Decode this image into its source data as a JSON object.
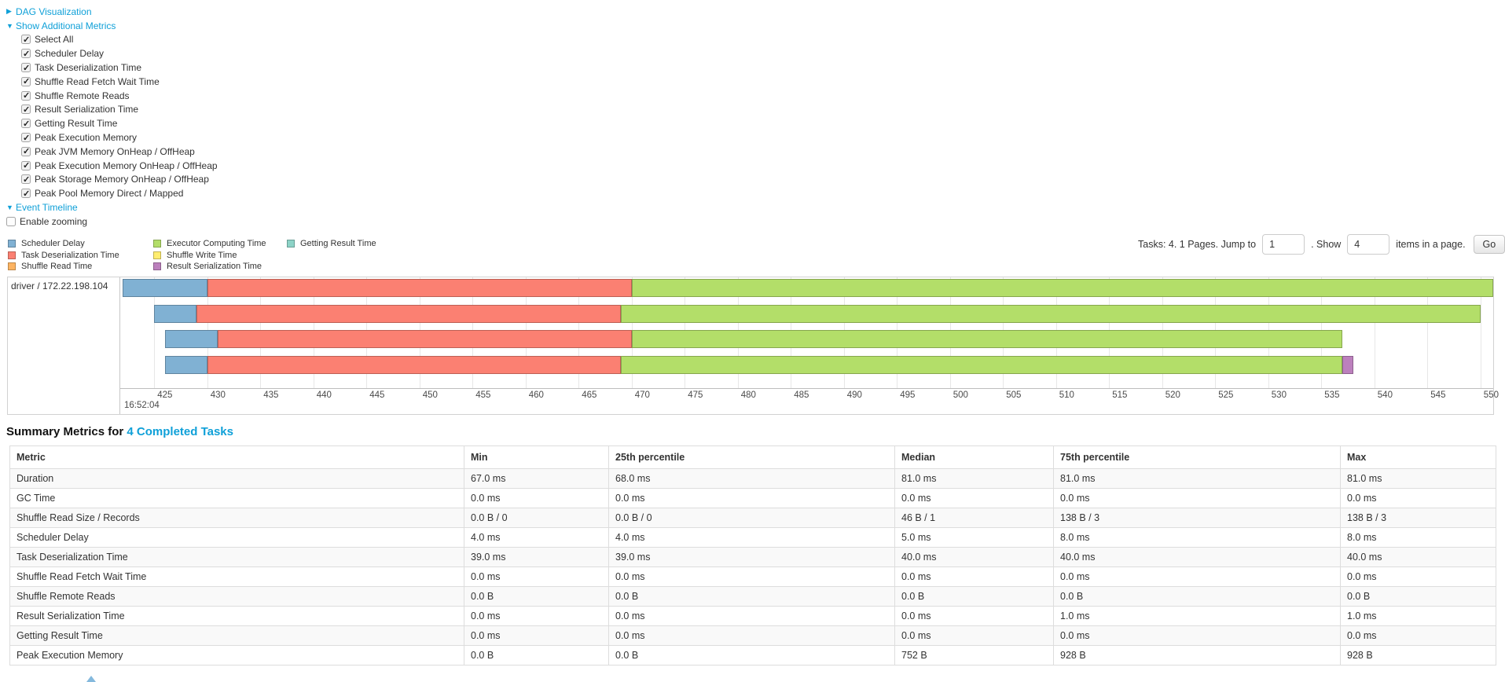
{
  "colors": {
    "link": "#0fa0d8"
  },
  "controls": {
    "dag_label": "DAG Visualization",
    "metrics_label": "Show Additional Metrics",
    "timeline_label": "Event Timeline",
    "enable_zooming_label": "Enable zooming",
    "metric_checkboxes": [
      "Select All",
      "Scheduler Delay",
      "Task Deserialization Time",
      "Shuffle Read Fetch Wait Time",
      "Shuffle Remote Reads",
      "Result Serialization Time",
      "Getting Result Time",
      "Peak Execution Memory",
      "Peak JVM Memory OnHeap / OffHeap",
      "Peak Execution Memory OnHeap / OffHeap",
      "Peak Storage Memory OnHeap / OffHeap",
      "Peak Pool Memory Direct / Mapped"
    ]
  },
  "legend": {
    "columns": [
      [
        {
          "label": "Scheduler Delay",
          "color": "#80B1D3"
        },
        {
          "label": "Task Deserialization Time",
          "color": "#FB8072"
        },
        {
          "label": "Shuffle Read Time",
          "color": "#FDB462"
        }
      ],
      [
        {
          "label": "Executor Computing Time",
          "color": "#B3DE69"
        },
        {
          "label": "Shuffle Write Time",
          "color": "#FFED6F"
        },
        {
          "label": "Result Serialization Time",
          "color": "#BC80BD"
        }
      ],
      [
        {
          "label": "Getting Result Time",
          "color": "#8DD3C7"
        }
      ]
    ]
  },
  "pagination": {
    "tasks_text": "Tasks: 4. 1 Pages. Jump to",
    "jump_value": "1",
    "mid_text": ". Show",
    "show_value": "4",
    "suffix_text": "items in a page.",
    "go_label": "Go"
  },
  "chart_data": {
    "type": "timeline",
    "title": "Event Timeline",
    "group_label": "driver / 172.22.198.104",
    "start_time_label": "16:52:04",
    "x_unit": "ms within 16:52:04",
    "x_range": [
      421.8,
      551.2
    ],
    "x_ticks": [
      425,
      430,
      435,
      440,
      445,
      450,
      455,
      460,
      465,
      470,
      475,
      480,
      485,
      490,
      495,
      500,
      505,
      510,
      515,
      520,
      525,
      530,
      535,
      540,
      545,
      550
    ],
    "colors": {
      "scheduler_delay": "#80B1D3",
      "task_deserialization": "#FB8072",
      "shuffle_read": "#FDB462",
      "executor_computing": "#B3DE69",
      "shuffle_write": "#FFED6F",
      "result_serialization": "#BC80BD",
      "getting_result": "#8DD3C7"
    },
    "tasks": [
      {
        "segments": [
          {
            "metric": "scheduler_delay",
            "start": 422,
            "end": 430
          },
          {
            "metric": "task_deserialization",
            "start": 430,
            "end": 470
          },
          {
            "metric": "executor_computing",
            "start": 470,
            "end": 551.2
          }
        ]
      },
      {
        "segments": [
          {
            "metric": "scheduler_delay",
            "start": 425,
            "end": 429
          },
          {
            "metric": "task_deserialization",
            "start": 429,
            "end": 469
          },
          {
            "metric": "executor_computing",
            "start": 469,
            "end": 550
          }
        ]
      },
      {
        "segments": [
          {
            "metric": "scheduler_delay",
            "start": 426,
            "end": 431
          },
          {
            "metric": "task_deserialization",
            "start": 431,
            "end": 470
          },
          {
            "metric": "executor_computing",
            "start": 470,
            "end": 537
          }
        ]
      },
      {
        "segments": [
          {
            "metric": "scheduler_delay",
            "start": 426,
            "end": 430
          },
          {
            "metric": "task_deserialization",
            "start": 430,
            "end": 469
          },
          {
            "metric": "executor_computing",
            "start": 469,
            "end": 537
          },
          {
            "metric": "result_serialization",
            "start": 537,
            "end": 538
          }
        ]
      }
    ]
  },
  "summary": {
    "title_prefix": "Summary Metrics for ",
    "title_link": "4 Completed Tasks",
    "columns": [
      "Metric",
      "Min",
      "25th percentile",
      "Median",
      "75th percentile",
      "Max"
    ],
    "rows": [
      {
        "metric": "Duration",
        "values": [
          "67.0 ms",
          "68.0 ms",
          "81.0 ms",
          "81.0 ms",
          "81.0 ms"
        ]
      },
      {
        "metric": "GC Time",
        "values": [
          "0.0 ms",
          "0.0 ms",
          "0.0 ms",
          "0.0 ms",
          "0.0 ms"
        ]
      },
      {
        "metric": "Shuffle Read Size / Records",
        "values": [
          "0.0 B / 0",
          "0.0 B / 0",
          "46 B / 1",
          "138 B / 3",
          "138 B / 3"
        ]
      },
      {
        "metric": "Scheduler Delay",
        "values": [
          "4.0 ms",
          "4.0 ms",
          "5.0 ms",
          "8.0 ms",
          "8.0 ms"
        ]
      },
      {
        "metric": "Task Deserialization Time",
        "values": [
          "39.0 ms",
          "39.0 ms",
          "40.0 ms",
          "40.0 ms",
          "40.0 ms"
        ]
      },
      {
        "metric": "Shuffle Read Fetch Wait Time",
        "values": [
          "0.0 ms",
          "0.0 ms",
          "0.0 ms",
          "0.0 ms",
          "0.0 ms"
        ]
      },
      {
        "metric": "Shuffle Remote Reads",
        "values": [
          "0.0 B",
          "0.0 B",
          "0.0 B",
          "0.0 B",
          "0.0 B"
        ]
      },
      {
        "metric": "Result Serialization Time",
        "values": [
          "0.0 ms",
          "0.0 ms",
          "0.0 ms",
          "1.0 ms",
          "1.0 ms"
        ]
      },
      {
        "metric": "Getting Result Time",
        "values": [
          "0.0 ms",
          "0.0 ms",
          "0.0 ms",
          "0.0 ms",
          "0.0 ms"
        ]
      },
      {
        "metric": "Peak Execution Memory",
        "values": [
          "0.0 B",
          "0.0 B",
          "752 B",
          "928 B",
          "928 B"
        ]
      }
    ]
  }
}
